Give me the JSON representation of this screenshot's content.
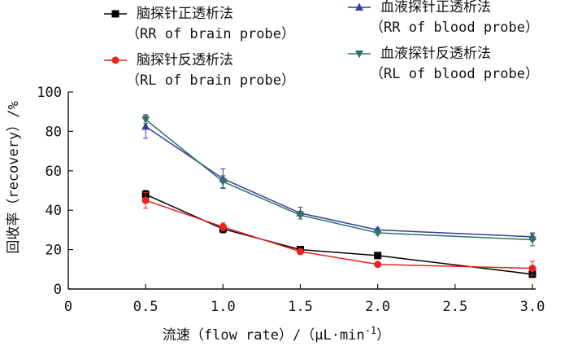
{
  "chart_data": {
    "type": "line",
    "x": [
      0.5,
      1.0,
      1.5,
      2.0,
      3.0
    ],
    "xlim": [
      0,
      3.0
    ],
    "ylim": [
      0,
      100
    ],
    "xticks": [
      "0",
      "0.5",
      "1.0",
      "1.5",
      "2.0",
      "2.5",
      "3.0"
    ],
    "xtick_values": [
      0,
      0.5,
      1.0,
      1.5,
      2.0,
      2.5,
      3.0
    ],
    "yticks": [
      "0",
      "20",
      "40",
      "60",
      "80",
      "100"
    ],
    "ytick_values": [
      0,
      20,
      40,
      60,
      80,
      100
    ],
    "xlabel_prefix": "流速（flow rate）/（μL·min",
    "xlabel_exp": "-1",
    "xlabel_suffix": "）",
    "ylabel": "回收率（recovery）/%",
    "grid": false,
    "legend_position": "top",
    "series": [
      {
        "name": "脑探针正透析法",
        "name_en": "（RR of brain probe）",
        "color": "#000000",
        "marker": "square",
        "values": [
          48,
          30.5,
          20,
          17,
          7.5
        ],
        "errors": [
          2,
          2,
          1,
          1,
          0.8
        ]
      },
      {
        "name": "脑探针反透析法",
        "name_en": "（RL of brain probe）",
        "color": "#e8231c",
        "marker": "circle",
        "values": [
          45,
          31.5,
          19,
          12.5,
          10.5
        ],
        "errors": [
          4,
          2,
          1,
          1,
          3.5
        ]
      },
      {
        "name": "血液探针正透析法",
        "name_en": "（RR of blood probe）",
        "color": "#3a3c9a",
        "marker": "triangle-up",
        "values": [
          82.5,
          56,
          38.5,
          30,
          26.5
        ],
        "errors": [
          6,
          5,
          3,
          1,
          2
        ]
      },
      {
        "name": "血液探针反透析法",
        "name_en": "（RL of blood probe）",
        "color": "#2e7566",
        "marker": "triangle-down",
        "values": [
          86,
          54.5,
          37.5,
          28.5,
          25
        ],
        "errors": [
          2,
          3,
          2,
          1,
          3
        ]
      }
    ]
  }
}
